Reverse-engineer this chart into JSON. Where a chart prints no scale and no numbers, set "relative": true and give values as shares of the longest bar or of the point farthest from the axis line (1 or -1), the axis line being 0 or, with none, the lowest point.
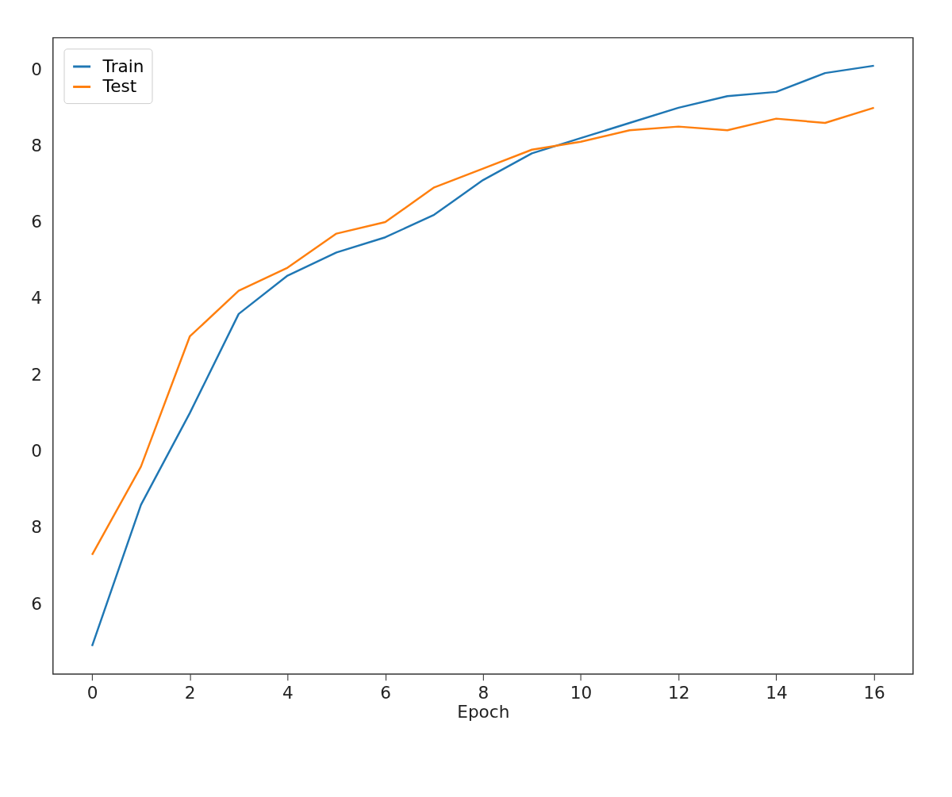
{
  "chart_data": {
    "type": "line",
    "xlabel": "Epoch",
    "relative": true,
    "x": [
      0,
      1,
      2,
      3,
      4,
      5,
      6,
      7,
      8,
      9,
      10,
      11,
      12,
      13,
      14,
      15,
      16
    ],
    "series": [
      {
        "name": "Train",
        "color": "#1f77b4",
        "values": [
          0.046,
          0.278,
          0.429,
          0.592,
          0.655,
          0.693,
          0.718,
          0.755,
          0.812,
          0.856,
          0.881,
          0.906,
          0.931,
          0.95,
          0.957,
          0.988,
          1
        ]
      },
      {
        "name": "Test",
        "color": "#ff7f0e",
        "values": [
          0.196,
          0.341,
          0.555,
          0.63,
          0.668,
          0.724,
          0.743,
          0.8,
          0.831,
          0.862,
          0.875,
          0.894,
          0.9,
          0.894,
          0.913,
          0.906,
          0.931
        ]
      }
    ],
    "xlim": [
      -0.8,
      16.8
    ],
    "xticks": [
      0,
      2,
      4,
      6,
      8,
      10,
      12,
      14,
      16
    ],
    "annotations": [
      "0",
      "8",
      "6",
      "4",
      "2",
      "0",
      "8",
      "6"
    ],
    "grid": false,
    "legend": "top left",
    "marker": "none",
    "line_style": "solid"
  }
}
